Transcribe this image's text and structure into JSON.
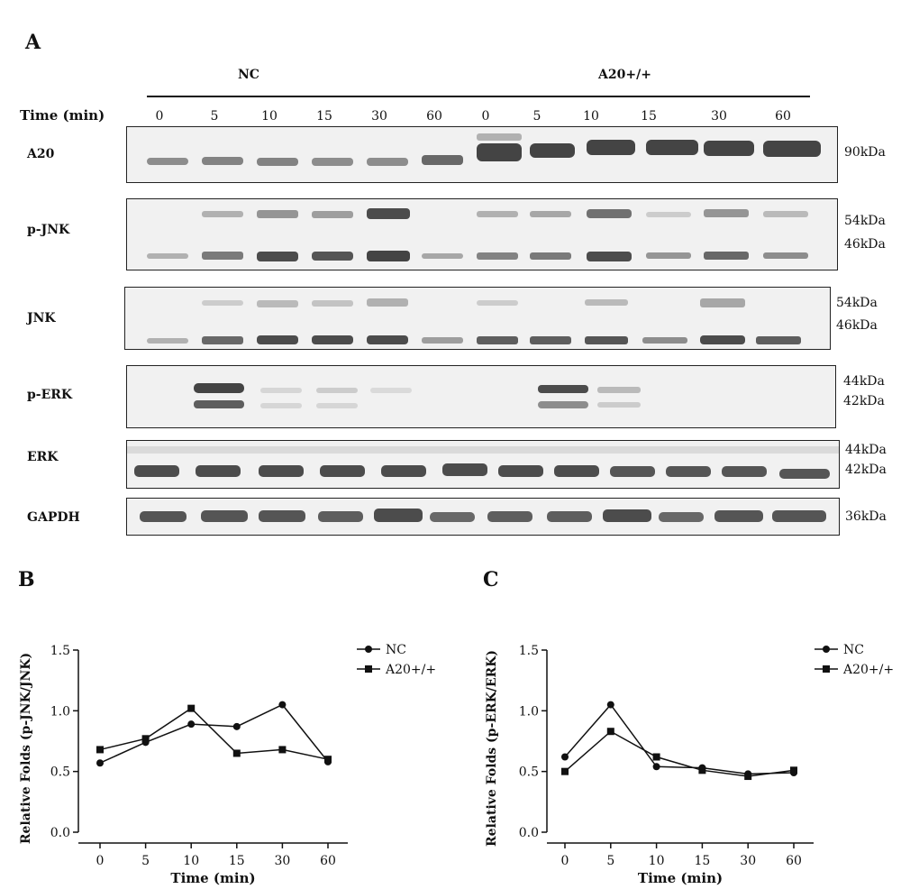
{
  "panel_a": {
    "letter": "A",
    "group_labels": [
      "NC",
      "A20+/+"
    ],
    "time_label": "Time (min)",
    "times": [
      "0",
      "5",
      "10",
      "15",
      "30",
      "60",
      "0",
      "5",
      "10",
      "15",
      "30",
      "60"
    ],
    "blots": [
      {
        "label": "A20",
        "kda": [
          "90kDa"
        ]
      },
      {
        "label": "p-JNK",
        "kda": [
          "54kDa",
          "46kDa"
        ]
      },
      {
        "label": "JNK",
        "kda": [
          "54kDa",
          "46kDa"
        ]
      },
      {
        "label": "p-ERK",
        "kda": [
          "44kDa",
          "42kDa"
        ]
      },
      {
        "label": "ERK",
        "kda": [
          "44kDa",
          "42kDa"
        ]
      },
      {
        "label": "GAPDH",
        "kda": [
          "36kDa"
        ]
      }
    ]
  },
  "chart_data": [
    {
      "panel": "B",
      "type": "line",
      "x": [
        "0",
        "5",
        "10",
        "15",
        "30",
        "60"
      ],
      "xlabel": "Time (min)",
      "ylabel": "Relative Folds (p-JNK/JNK)",
      "ylim": [
        0,
        1.5
      ],
      "yticks": [
        "0.0",
        "0.5",
        "1.0",
        "1.5"
      ],
      "legend_position": "top-right",
      "series": [
        {
          "name": "NC",
          "marker": "circle",
          "values": [
            0.57,
            0.74,
            0.89,
            0.87,
            1.05,
            0.58
          ]
        },
        {
          "name": "A20+/+",
          "marker": "square",
          "values": [
            0.68,
            0.77,
            1.02,
            0.65,
            0.68,
            0.6
          ]
        }
      ]
    },
    {
      "panel": "C",
      "type": "line",
      "x": [
        "0",
        "5",
        "10",
        "15",
        "30",
        "60"
      ],
      "xlabel": "Time (min)",
      "ylabel": "Relative Folds (p-ERK/ERK)",
      "ylim": [
        0,
        1.5
      ],
      "yticks": [
        "0.0",
        "0.5",
        "1.0",
        "1.5"
      ],
      "legend_position": "top-right",
      "series": [
        {
          "name": "NC",
          "marker": "circle",
          "values": [
            0.62,
            1.05,
            0.54,
            0.53,
            0.48,
            0.49
          ]
        },
        {
          "name": "A20+/+",
          "marker": "square",
          "values": [
            0.5,
            0.83,
            0.62,
            0.51,
            0.46,
            0.51
          ]
        }
      ]
    }
  ]
}
